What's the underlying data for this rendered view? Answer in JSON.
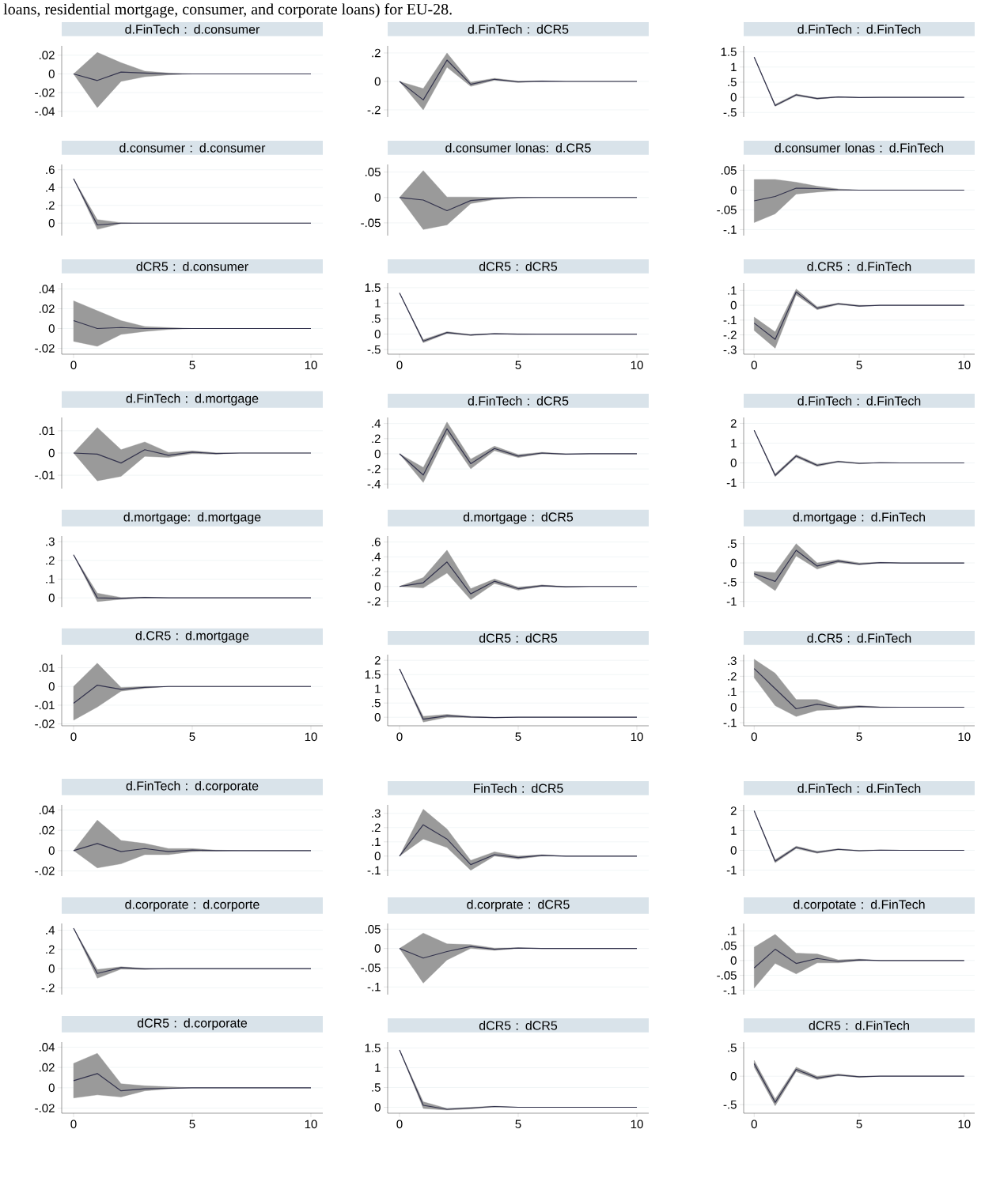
{
  "chart_data": [
    {
      "type": "line",
      "title": "d.FinTech : d.consumer",
      "annotations": [
        "loans, residential mortgage, consumer, and corporate loans) for EU-28."
      ],
      "x": [
        0,
        1,
        2,
        3,
        4,
        5,
        6,
        7,
        8,
        9,
        10
      ],
      "series": [
        {
          "color": "#33334d",
          "values": [
            0,
            -0.007,
            0.002,
            0.001,
            0,
            0,
            0,
            0,
            0,
            0,
            0
          ],
          "lower": [
            0,
            -0.036,
            -0.008,
            -0.003,
            -0.001,
            0,
            0,
            0,
            0,
            0,
            0
          ],
          "upper": [
            0,
            0.023,
            0.012,
            0.003,
            0.001,
            0,
            0,
            0,
            0,
            0,
            0
          ]
        }
      ],
      "xlim": [
        -0.5,
        10.5
      ],
      "xticks": [
        0,
        5,
        10
      ],
      "ylim": [
        -0.046,
        0.03
      ],
      "yticks": [
        {
          "value": 0.02,
          "label": ".02"
        },
        0,
        {
          "value": -0.02,
          "label": "-.02"
        },
        {
          "value": -0.04,
          "label": "-.04"
        }
      ],
      "grid": "y",
      "tick_labels": "y"
    },
    {
      "type": "line",
      "title": "d.consumer : d.consumer",
      "x": [
        0,
        1,
        2,
        3,
        4,
        5,
        6,
        7,
        8,
        9,
        10
      ],
      "series": [
        {
          "color": "#33334d",
          "values": [
            0.5,
            -0.02,
            0,
            0,
            0,
            0,
            0,
            0,
            0,
            0,
            0
          ],
          "lower": [
            0.5,
            -0.07,
            -0.005,
            0,
            0,
            0,
            0,
            0,
            0,
            0,
            0
          ],
          "upper": [
            0.5,
            0.04,
            0.005,
            0,
            0,
            0,
            0,
            0,
            0,
            0,
            0
          ]
        }
      ],
      "xlim": [
        -0.5,
        10.5
      ],
      "xticks": [
        0,
        5,
        10
      ],
      "ylim": [
        -0.14,
        0.66
      ],
      "yticks": [
        {
          "value": 0.6,
          "label": ".6"
        },
        {
          "value": 0.4,
          "label": ".4"
        },
        {
          "value": 0.2,
          "label": ".2"
        },
        0
      ],
      "grid": "y",
      "tick_labels": "y"
    },
    {
      "type": "line",
      "title": "dCR5 : d.consumer",
      "x": [
        0,
        1,
        2,
        3,
        4,
        5,
        6,
        7,
        8,
        9,
        10
      ],
      "series": [
        {
          "color": "#33334d",
          "values": [
            0.008,
            0,
            0.001,
            0,
            0,
            0,
            0,
            0,
            0,
            0,
            0
          ],
          "lower": [
            -0.013,
            -0.018,
            -0.006,
            -0.003,
            -0.001,
            0,
            0,
            0,
            0,
            0,
            0
          ],
          "upper": [
            0.028,
            0.018,
            0.008,
            0.002,
            0.001,
            0,
            0,
            0,
            0,
            0,
            0
          ]
        }
      ],
      "xlim": [
        -0.5,
        10.5
      ],
      "xticks": [
        0,
        5,
        10
      ],
      "ylim": [
        -0.026,
        0.046
      ],
      "yticks": [
        {
          "value": 0.04,
          "label": ".04"
        },
        {
          "value": 0.02,
          "label": ".02"
        },
        0,
        {
          "value": -0.02,
          "label": "-.02"
        }
      ],
      "grid": "y"
    },
    {
      "type": "line",
      "title": "d.FinTech : dCR5",
      "x": [
        0,
        1,
        2,
        3,
        4,
        5,
        6,
        7,
        8,
        9,
        10
      ],
      "series": [
        {
          "color": "#33334d",
          "values": [
            0,
            -0.13,
            0.15,
            -0.02,
            0.015,
            -0.003,
            0.002,
            0,
            0,
            0,
            0
          ],
          "lower": [
            0,
            -0.2,
            0.1,
            -0.035,
            0.008,
            -0.008,
            0,
            0,
            0,
            0,
            0
          ],
          "upper": [
            0,
            -0.05,
            0.2,
            -0.005,
            0.022,
            0.002,
            0.004,
            0,
            0,
            0,
            0
          ]
        }
      ],
      "xlim": [
        -0.5,
        10.5
      ],
      "xticks": [
        0,
        5,
        10
      ],
      "ylim": [
        -0.25,
        0.25
      ],
      "yticks": [
        {
          "value": 0.2,
          "label": ".2"
        },
        0,
        {
          "value": -0.2,
          "label": "-.2"
        }
      ],
      "grid": "y",
      "tick_labels": "y"
    },
    {
      "type": "line",
      "title": "d.consumer lonas: d.CR5",
      "x": [
        0,
        1,
        2,
        3,
        4,
        5,
        6,
        7,
        8,
        9,
        10
      ],
      "series": [
        {
          "color": "#33334d",
          "values": [
            0,
            -0.005,
            -0.026,
            -0.006,
            -0.002,
            0,
            0,
            0,
            0,
            0,
            0
          ],
          "lower": [
            0,
            -0.063,
            -0.054,
            -0.012,
            -0.004,
            -0.001,
            0,
            0,
            0,
            0,
            0
          ],
          "upper": [
            0,
            0.053,
            0.001,
            0.001,
            0,
            0,
            0,
            0,
            0,
            0,
            0
          ]
        }
      ],
      "xlim": [
        -0.5,
        10.5
      ],
      "xticks": [
        0,
        5,
        10
      ],
      "ylim": [
        -0.075,
        0.065
      ],
      "yticks": [
        {
          "value": 0.05,
          "label": ".05"
        },
        0,
        {
          "value": -0.05,
          "label": "-.05"
        }
      ],
      "grid": "y",
      "tick_labels": "y"
    },
    {
      "type": "line",
      "title": "dCR5 : dCR5",
      "x": [
        0,
        1,
        2,
        3,
        4,
        5,
        6,
        7,
        8,
        9,
        10
      ],
      "series": [
        {
          "color": "#33334d",
          "values": [
            1.33,
            -0.23,
            0.05,
            -0.03,
            0.01,
            0,
            0,
            0,
            0,
            0,
            0
          ],
          "lower": [
            1.33,
            -0.28,
            0.02,
            -0.05,
            0,
            -0.01,
            0,
            0,
            0,
            0,
            0
          ],
          "upper": [
            1.33,
            -0.18,
            0.08,
            -0.01,
            0.02,
            0.01,
            0,
            0,
            0,
            0,
            0
          ]
        }
      ],
      "xlim": [
        -0.5,
        10.5
      ],
      "xticks": [
        0,
        5,
        10
      ],
      "ylim": [
        -0.65,
        1.65
      ],
      "yticks": [
        1.5,
        1,
        {
          "value": 0.5,
          "label": ".5"
        },
        0,
        {
          "value": -0.5,
          "label": "-.5"
        }
      ],
      "grid": "y"
    },
    {
      "type": "line",
      "title": "d.FinTech : d.FinTech",
      "x": [
        0,
        1,
        2,
        3,
        4,
        5,
        6,
        7,
        8,
        9,
        10
      ],
      "series": [
        {
          "color": "#33334d",
          "values": [
            1.33,
            -0.27,
            0.08,
            -0.04,
            0.01,
            -0.005,
            0,
            0,
            0,
            0,
            0
          ],
          "lower": [
            1.33,
            -0.3,
            0.05,
            -0.06,
            0,
            -0.01,
            0,
            0,
            0,
            0,
            0
          ],
          "upper": [
            1.33,
            -0.23,
            0.11,
            -0.02,
            0.02,
            0,
            0,
            0,
            0,
            0,
            0
          ]
        }
      ],
      "xlim": [
        -0.5,
        10.5
      ],
      "xticks": [
        0,
        5,
        10
      ],
      "ylim": [
        -0.65,
        1.7
      ],
      "yticks": [
        1.5,
        1,
        {
          "value": 0.5,
          "label": ".5"
        },
        0,
        {
          "value": -0.5,
          "label": "-.5"
        }
      ],
      "grid": "y",
      "tick_labels": "y"
    },
    {
      "type": "line",
      "title": "d.consumer lonas : d.FinTech",
      "x": [
        0,
        1,
        2,
        3,
        4,
        5,
        6,
        7,
        8,
        9,
        10
      ],
      "series": [
        {
          "color": "#33334d",
          "values": [
            -0.027,
            -0.016,
            0.005,
            0.004,
            0.001,
            0,
            0,
            0,
            0,
            0,
            0
          ],
          "lower": [
            -0.082,
            -0.06,
            -0.01,
            -0.005,
            -0.001,
            0,
            0,
            0,
            0,
            0,
            0
          ],
          "upper": [
            0.027,
            0.027,
            0.02,
            0.01,
            0.003,
            0,
            0,
            0,
            0,
            0,
            0
          ]
        }
      ],
      "xlim": [
        -0.5,
        10.5
      ],
      "xticks": [
        0,
        5,
        10
      ],
      "ylim": [
        -0.115,
        0.065
      ],
      "yticks": [
        {
          "value": 0.05,
          "label": ".05"
        },
        0,
        {
          "value": -0.05,
          "label": "-.05"
        },
        {
          "value": -0.1,
          "label": "-.1"
        }
      ],
      "grid": "y",
      "tick_labels": "y"
    },
    {
      "type": "line",
      "title": "d.CR5 : d.FinTech",
      "x": [
        0,
        1,
        2,
        3,
        4,
        5,
        6,
        7,
        8,
        9,
        10
      ],
      "series": [
        {
          "color": "#33334d",
          "values": [
            -0.12,
            -0.23,
            0.09,
            -0.02,
            0.01,
            -0.005,
            0,
            0,
            0,
            0,
            0
          ],
          "lower": [
            -0.17,
            -0.29,
            0.07,
            -0.03,
            0.005,
            -0.008,
            0,
            0,
            0,
            0,
            0
          ],
          "upper": [
            -0.08,
            -0.18,
            0.11,
            -0.01,
            0.015,
            0,
            0,
            0,
            0,
            0,
            0
          ]
        }
      ],
      "xlim": [
        -0.5,
        10.5
      ],
      "xticks": [
        0,
        5,
        10
      ],
      "ylim": [
        -0.33,
        0.15
      ],
      "yticks": [
        {
          "value": 0.1,
          "label": ".1"
        },
        0,
        {
          "value": -0.1,
          "label": "-.1"
        },
        {
          "value": -0.2,
          "label": "-.2"
        },
        {
          "value": -0.3,
          "label": "-.3"
        }
      ],
      "grid": "y"
    },
    {
      "type": "line",
      "title": "d.FinTech : d.mortgage",
      "x": [
        0,
        1,
        2,
        3,
        4,
        5,
        6,
        7,
        8,
        9,
        10
      ],
      "series": [
        {
          "color": "#33334d",
          "values": [
            0,
            -0.0005,
            -0.0045,
            0.0015,
            -0.001,
            0.0004,
            -0.0002,
            0,
            0,
            0,
            0
          ],
          "lower": [
            0,
            -0.0125,
            -0.0105,
            -0.0015,
            -0.002,
            -0.0003,
            -0.0005,
            0,
            0,
            0,
            0
          ],
          "upper": [
            0,
            0.0115,
            0.0015,
            0.005,
            0.0003,
            0.001,
            0.0001,
            0,
            0,
            0,
            0
          ]
        }
      ],
      "xlim": [
        -0.5,
        10.5
      ],
      "xticks": [
        0,
        5,
        10
      ],
      "ylim": [
        -0.016,
        0.016
      ],
      "yticks": [
        {
          "value": 0.01,
          "label": ".01"
        },
        0,
        {
          "value": -0.01,
          "label": "-.01"
        }
      ],
      "grid": "y",
      "tick_labels": "y"
    },
    {
      "type": "line",
      "title": "d.mortgage: d.mortgage",
      "x": [
        0,
        1,
        2,
        3,
        4,
        5,
        6,
        7,
        8,
        9,
        10
      ],
      "series": [
        {
          "color": "#33334d",
          "values": [
            0.23,
            0,
            -0.003,
            0.002,
            0,
            0,
            0,
            0,
            0,
            0,
            0
          ],
          "lower": [
            0.23,
            -0.02,
            -0.008,
            0,
            0,
            0,
            0,
            0,
            0,
            0,
            0
          ],
          "upper": [
            0.23,
            0.025,
            0.002,
            0.004,
            0,
            0,
            0,
            0,
            0,
            0,
            0
          ]
        }
      ],
      "xlim": [
        -0.5,
        10.5
      ],
      "xticks": [
        0,
        5,
        10
      ],
      "ylim": [
        -0.05,
        0.33
      ],
      "yticks": [
        {
          "value": 0.3,
          "label": ".3"
        },
        {
          "value": 0.2,
          "label": ".2"
        },
        {
          "value": 0.1,
          "label": ".1"
        },
        0
      ],
      "grid": "y",
      "tick_labels": "y"
    },
    {
      "type": "line",
      "title": "d.CR5 : d.mortgage",
      "x": [
        0,
        1,
        2,
        3,
        4,
        5,
        6,
        7,
        8,
        9,
        10
      ],
      "series": [
        {
          "color": "#33334d",
          "values": [
            -0.009,
            0.0007,
            -0.0015,
            -0.0005,
            0,
            0,
            0,
            0,
            0,
            0,
            0
          ],
          "lower": [
            -0.018,
            -0.011,
            -0.0025,
            -0.001,
            0,
            0,
            0,
            0,
            0,
            0,
            0
          ],
          "upper": [
            0,
            0.0125,
            -0.0005,
            0,
            0,
            0,
            0,
            0,
            0,
            0,
            0
          ]
        }
      ],
      "xlim": [
        -0.5,
        10.5
      ],
      "xticks": [
        0,
        5,
        10
      ],
      "ylim": [
        -0.021,
        0.017
      ],
      "yticks": [
        {
          "value": 0.01,
          "label": ".01"
        },
        0,
        {
          "value": -0.01,
          "label": "-.01"
        },
        {
          "value": -0.02,
          "label": "-.02"
        }
      ],
      "grid": "y"
    },
    {
      "type": "line",
      "title": "d.FinTech : dCR5",
      "x": [
        0,
        1,
        2,
        3,
        4,
        5,
        6,
        7,
        8,
        9,
        10
      ],
      "series": [
        {
          "color": "#33334d",
          "values": [
            0,
            -0.28,
            0.33,
            -0.13,
            0.07,
            -0.03,
            0.01,
            -0.005,
            0,
            0,
            0
          ],
          "lower": [
            0,
            -0.38,
            0.26,
            -0.2,
            0.04,
            -0.05,
            0,
            -0.01,
            0,
            0,
            0
          ],
          "upper": [
            0,
            -0.18,
            0.42,
            -0.07,
            0.1,
            -0.01,
            0.02,
            0,
            0,
            0,
            0
          ]
        }
      ],
      "xlim": [
        -0.5,
        10.5
      ],
      "xticks": [
        0,
        5,
        10
      ],
      "ylim": [
        -0.46,
        0.48
      ],
      "yticks": [
        {
          "value": 0.4,
          "label": ".4"
        },
        {
          "value": 0.2,
          "label": ".2"
        },
        0,
        {
          "value": -0.2,
          "label": "-.2"
        },
        {
          "value": -0.4,
          "label": "-.4"
        }
      ],
      "grid": "y",
      "tick_labels": "y"
    },
    {
      "type": "line",
      "title": "d.mortgage : dCR5",
      "x": [
        0,
        1,
        2,
        3,
        4,
        5,
        6,
        7,
        8,
        9,
        10
      ],
      "series": [
        {
          "color": "#33334d",
          "values": [
            0,
            0.05,
            0.33,
            -0.1,
            0.07,
            -0.03,
            0.01,
            -0.005,
            0,
            0,
            0
          ],
          "lower": [
            0,
            -0.02,
            0.18,
            -0.18,
            0.04,
            -0.05,
            0,
            -0.01,
            0,
            0,
            0
          ],
          "upper": [
            0,
            0.12,
            0.49,
            -0.03,
            0.1,
            -0.01,
            0.02,
            0,
            0,
            0,
            0
          ]
        }
      ],
      "xlim": [
        -0.5,
        10.5
      ],
      "xticks": [
        0,
        5,
        10
      ],
      "ylim": [
        -0.28,
        0.68
      ],
      "yticks": [
        {
          "value": 0.6,
          "label": ".6"
        },
        {
          "value": 0.4,
          "label": ".4"
        },
        {
          "value": 0.2,
          "label": ".2"
        },
        0,
        {
          "value": -0.2,
          "label": "-.2"
        }
      ],
      "grid": "y",
      "tick_labels": "y"
    },
    {
      "type": "line",
      "title": "dCR5 : dCR5",
      "x": [
        0,
        1,
        2,
        3,
        4,
        5,
        6,
        7,
        8,
        9,
        10
      ],
      "series": [
        {
          "color": "#33334d",
          "values": [
            1.7,
            -0.07,
            0.05,
            0.01,
            -0.01,
            0,
            0,
            0,
            0,
            0,
            0
          ],
          "lower": [
            1.7,
            -0.17,
            0,
            -0.01,
            -0.02,
            0,
            0,
            0,
            0,
            0,
            0
          ],
          "upper": [
            1.7,
            0.03,
            0.1,
            0.03,
            0,
            0,
            0,
            0,
            0,
            0,
            0
          ]
        }
      ],
      "xlim": [
        -0.5,
        10.5
      ],
      "xticks": [
        0,
        5,
        10
      ],
      "ylim": [
        -0.3,
        2.2
      ],
      "yticks": [
        2,
        1.5,
        1,
        {
          "value": 0.5,
          "label": ".5"
        },
        0
      ],
      "grid": "y"
    },
    {
      "type": "line",
      "title": "d.FinTech : d.FinTech",
      "x": [
        0,
        1,
        2,
        3,
        4,
        5,
        6,
        7,
        8,
        9,
        10
      ],
      "series": [
        {
          "color": "#33334d",
          "values": [
            1.65,
            -0.63,
            0.35,
            -0.12,
            0.07,
            -0.02,
            0.01,
            0,
            0,
            0,
            0
          ],
          "lower": [
            1.65,
            -0.7,
            0.28,
            -0.18,
            0.04,
            -0.05,
            0,
            0,
            0,
            0,
            0
          ],
          "upper": [
            1.65,
            -0.55,
            0.42,
            -0.06,
            0.1,
            0,
            0.02,
            0,
            0,
            0,
            0
          ]
        }
      ],
      "xlim": [
        -0.5,
        10.5
      ],
      "xticks": [
        0,
        5,
        10
      ],
      "ylim": [
        -1.3,
        2.3
      ],
      "yticks": [
        2,
        1,
        0,
        -1
      ],
      "grid": "y",
      "tick_labels": "y"
    },
    {
      "type": "line",
      "title": "d.mortgage : d.FinTech",
      "x": [
        0,
        1,
        2,
        3,
        4,
        5,
        6,
        7,
        8,
        9,
        10
      ],
      "series": [
        {
          "color": "#33334d",
          "values": [
            -0.28,
            -0.48,
            0.33,
            -0.08,
            0.05,
            -0.03,
            0.01,
            0,
            0,
            0,
            0
          ],
          "lower": [
            -0.35,
            -0.72,
            0.18,
            -0.16,
            0.01,
            -0.05,
            0,
            0,
            0,
            0,
            0
          ],
          "upper": [
            -0.22,
            -0.25,
            0.5,
            0,
            0.09,
            0,
            0.02,
            0,
            0,
            0,
            0
          ]
        }
      ],
      "xlim": [
        -0.5,
        10.5
      ],
      "xticks": [
        0,
        5,
        10
      ],
      "ylim": [
        -1.15,
        0.7
      ],
      "yticks": [
        {
          "value": 0.5,
          "label": ".5"
        },
        0,
        {
          "value": -0.5,
          "label": "-.5"
        },
        -1
      ],
      "grid": "y",
      "tick_labels": "y"
    },
    {
      "type": "line",
      "title": "d.CR5 : d.FinTech",
      "x": [
        0,
        1,
        2,
        3,
        4,
        5,
        6,
        7,
        8,
        9,
        10
      ],
      "series": [
        {
          "color": "#33334d",
          "values": [
            0.25,
            0.12,
            -0.01,
            0.02,
            -0.005,
            0.005,
            0,
            0,
            0,
            0,
            0
          ],
          "lower": [
            0.19,
            0.01,
            -0.06,
            -0.02,
            -0.015,
            0,
            -0.003,
            0,
            0,
            0,
            0
          ],
          "upper": [
            0.31,
            0.22,
            0.05,
            0.05,
            0.005,
            0.01,
            0.003,
            0,
            0,
            0,
            0
          ]
        }
      ],
      "xlim": [
        -0.5,
        10.5
      ],
      "xticks": [
        0,
        5,
        10
      ],
      "ylim": [
        -0.12,
        0.34
      ],
      "yticks": [
        {
          "value": 0.3,
          "label": ".3"
        },
        {
          "value": 0.2,
          "label": ".2"
        },
        {
          "value": 0.1,
          "label": ".1"
        },
        0,
        {
          "value": -0.1,
          "label": "-.1"
        }
      ],
      "grid": "y"
    },
    {
      "type": "line",
      "title": "d.FinTech : d.corporate",
      "x": [
        0,
        1,
        2,
        3,
        4,
        5,
        6,
        7,
        8,
        9,
        10
      ],
      "series": [
        {
          "color": "#33334d",
          "values": [
            0,
            0.007,
            -0.001,
            0.002,
            -0.001,
            0.0005,
            0,
            0,
            0,
            0,
            0
          ],
          "lower": [
            0,
            -0.017,
            -0.013,
            -0.004,
            -0.004,
            -0.001,
            -0.0005,
            0,
            0,
            0,
            0
          ],
          "upper": [
            0,
            0.03,
            0.01,
            0.007,
            0.002,
            0.002,
            0.0005,
            0,
            0,
            0,
            0
          ]
        }
      ],
      "xlim": [
        -0.5,
        10.5
      ],
      "xticks": [
        0,
        5,
        10
      ],
      "ylim": [
        -0.025,
        0.045
      ],
      "yticks": [
        {
          "value": 0.04,
          "label": ".04"
        },
        {
          "value": 0.02,
          "label": ".02"
        },
        0,
        {
          "value": -0.02,
          "label": "-.02"
        }
      ],
      "grid": "y",
      "tick_labels": "y"
    },
    {
      "type": "line",
      "title": "d.corporate : d.corporte",
      "x": [
        0,
        1,
        2,
        3,
        4,
        5,
        6,
        7,
        8,
        9,
        10
      ],
      "series": [
        {
          "color": "#33334d",
          "values": [
            0.42,
            -0.05,
            0.01,
            -0.002,
            0,
            0,
            0,
            0,
            0,
            0,
            0
          ],
          "lower": [
            0.42,
            -0.1,
            -0.005,
            -0.01,
            0,
            0,
            0,
            0,
            0,
            0,
            0
          ],
          "upper": [
            0.42,
            -0.01,
            0.02,
            0.003,
            0,
            0,
            0,
            0,
            0,
            0,
            0
          ]
        }
      ],
      "xlim": [
        -0.5,
        10.5
      ],
      "xticks": [
        0,
        5,
        10
      ],
      "ylim": [
        -0.27,
        0.47
      ],
      "yticks": [
        {
          "value": 0.4,
          "label": ".4"
        },
        {
          "value": 0.2,
          "label": ".2"
        },
        0,
        {
          "value": -0.2,
          "label": "-.2"
        }
      ],
      "grid": "y",
      "tick_labels": "y"
    },
    {
      "type": "line",
      "title": "dCR5 : d.corporate",
      "x": [
        0,
        1,
        2,
        3,
        4,
        5,
        6,
        7,
        8,
        9,
        10
      ],
      "series": [
        {
          "color": "#33334d",
          "values": [
            0.007,
            0.014,
            -0.003,
            -0.001,
            -0.0005,
            0,
            0,
            0,
            0,
            0,
            0
          ],
          "lower": [
            -0.01,
            -0.007,
            -0.009,
            -0.003,
            -0.001,
            0,
            0,
            0,
            0,
            0,
            0
          ],
          "upper": [
            0.024,
            0.034,
            0.004,
            0.002,
            0.001,
            0,
            0,
            0,
            0,
            0,
            0
          ]
        }
      ],
      "xlim": [
        -0.5,
        10.5
      ],
      "xticks": [
        0,
        5,
        10
      ],
      "ylim": [
        -0.025,
        0.045
      ],
      "yticks": [
        {
          "value": 0.04,
          "label": ".04"
        },
        {
          "value": 0.02,
          "label": ".02"
        },
        0,
        {
          "value": -0.02,
          "label": "-.02"
        }
      ],
      "grid": "y"
    },
    {
      "type": "line",
      "title": "FinTech : dCR5",
      "x": [
        0,
        1,
        2,
        3,
        4,
        5,
        6,
        7,
        8,
        9,
        10
      ],
      "series": [
        {
          "color": "#33334d",
          "values": [
            0,
            0.22,
            0.12,
            -0.06,
            0.01,
            -0.01,
            0.005,
            0,
            0,
            0,
            0
          ],
          "lower": [
            0,
            0.12,
            0.06,
            -0.1,
            0,
            -0.02,
            0,
            0,
            0,
            0,
            0
          ],
          "upper": [
            0,
            0.33,
            0.19,
            -0.03,
            0.03,
            0,
            0.01,
            0,
            0,
            0,
            0
          ]
        }
      ],
      "xlim": [
        -0.5,
        10.5
      ],
      "xticks": [
        0,
        5,
        10
      ],
      "ylim": [
        -0.14,
        0.36
      ],
      "yticks": [
        {
          "value": 0.3,
          "label": ".3"
        },
        {
          "value": 0.2,
          "label": ".2"
        },
        {
          "value": 0.1,
          "label": ".1"
        },
        0,
        {
          "value": -0.1,
          "label": "-.1"
        }
      ],
      "grid": "y",
      "tick_labels": "y"
    },
    {
      "type": "line",
      "title": "d.corprate : dCR5",
      "x": [
        0,
        1,
        2,
        3,
        4,
        5,
        6,
        7,
        8,
        9,
        10
      ],
      "series": [
        {
          "color": "#33334d",
          "values": [
            0,
            -0.025,
            -0.008,
            0.005,
            -0.002,
            0.001,
            0,
            0,
            0,
            0,
            0
          ],
          "lower": [
            0,
            -0.09,
            -0.03,
            0,
            -0.005,
            0,
            0,
            0,
            0,
            0,
            0
          ],
          "upper": [
            0,
            0.04,
            0.012,
            0.01,
            0.001,
            0.002,
            0,
            0,
            0,
            0,
            0
          ]
        }
      ],
      "xlim": [
        -0.5,
        10.5
      ],
      "xticks": [
        0,
        5,
        10
      ],
      "ylim": [
        -0.12,
        0.065
      ],
      "yticks": [
        {
          "value": 0.05,
          "label": ".05"
        },
        0,
        {
          "value": -0.05,
          "label": "-.05"
        },
        {
          "value": -0.1,
          "label": "-.1"
        }
      ],
      "grid": "y",
      "tick_labels": "y"
    },
    {
      "type": "line",
      "title": "dCR5 : dCR5",
      "x": [
        0,
        1,
        2,
        3,
        4,
        5,
        6,
        7,
        8,
        9,
        10
      ],
      "series": [
        {
          "color": "#33334d",
          "values": [
            1.45,
            0.05,
            -0.05,
            -0.02,
            0.02,
            0,
            0,
            0,
            0,
            0,
            0
          ],
          "lower": [
            1.45,
            -0.03,
            -0.07,
            -0.04,
            0.01,
            0,
            0,
            0,
            0,
            0,
            0
          ],
          "upper": [
            1.45,
            0.14,
            -0.03,
            0,
            0.03,
            0,
            0,
            0,
            0,
            0,
            0
          ]
        }
      ],
      "xlim": [
        -0.5,
        10.5
      ],
      "xticks": [
        0,
        5,
        10
      ],
      "ylim": [
        -0.15,
        1.65
      ],
      "yticks": [
        1.5,
        1,
        {
          "value": 0.5,
          "label": ".5"
        },
        0
      ],
      "grid": "y"
    },
    {
      "type": "line",
      "title": "d.FinTech : d.FinTech",
      "x": [
        0,
        1,
        2,
        3,
        4,
        5,
        6,
        7,
        8,
        9,
        10
      ],
      "series": [
        {
          "color": "#33334d",
          "values": [
            2,
            -0.55,
            0.15,
            -0.1,
            0.05,
            -0.02,
            0.01,
            0,
            0,
            0,
            0
          ],
          "lower": [
            2,
            -0.63,
            0.09,
            -0.15,
            0.02,
            -0.04,
            0,
            0,
            0,
            0,
            0
          ],
          "upper": [
            2,
            -0.47,
            0.21,
            -0.05,
            0.08,
            0,
            0.02,
            0,
            0,
            0,
            0
          ]
        }
      ],
      "xlim": [
        -0.5,
        10.5
      ],
      "xticks": [
        0,
        5,
        10
      ],
      "ylim": [
        -1.3,
        2.3
      ],
      "yticks": [
        2,
        1,
        0,
        -1
      ],
      "grid": "y",
      "tick_labels": "y"
    },
    {
      "type": "line",
      "title": "d.corpotate : d.FinTech",
      "x": [
        0,
        1,
        2,
        3,
        4,
        5,
        6,
        7,
        8,
        9,
        10
      ],
      "series": [
        {
          "color": "#33334d",
          "values": [
            -0.025,
            0.038,
            -0.01,
            0.007,
            -0.003,
            0.002,
            0,
            0,
            0,
            0,
            0
          ],
          "lower": [
            -0.093,
            -0.01,
            -0.045,
            -0.008,
            -0.008,
            -0.001,
            0,
            0,
            0,
            0,
            0
          ],
          "upper": [
            0.045,
            0.088,
            0.025,
            0.022,
            0.002,
            0.005,
            0,
            0,
            0,
            0,
            0
          ]
        }
      ],
      "xlim": [
        -0.5,
        10.5
      ],
      "xticks": [
        0,
        5,
        10
      ],
      "ylim": [
        -0.115,
        0.125
      ],
      "yticks": [
        {
          "value": 0.1,
          "label": ".1"
        },
        {
          "value": 0.05,
          "label": ".05"
        },
        0,
        {
          "value": -0.05,
          "label": "-.05"
        },
        {
          "value": -0.1,
          "label": "-.1"
        }
      ],
      "grid": "y",
      "tick_labels": "y"
    },
    {
      "type": "line",
      "title": "dCR5 : d.FinTech",
      "x": [
        0,
        1,
        2,
        3,
        4,
        5,
        6,
        7,
        8,
        9,
        10
      ],
      "series": [
        {
          "color": "#33334d",
          "values": [
            0.22,
            -0.46,
            0.12,
            -0.03,
            0.02,
            -0.01,
            0,
            0,
            0,
            0,
            0
          ],
          "lower": [
            0.16,
            -0.52,
            0.08,
            -0.06,
            0.01,
            -0.02,
            0,
            0,
            0,
            0,
            0
          ],
          "upper": [
            0.28,
            -0.4,
            0.16,
            0,
            0.04,
            0,
            0,
            0,
            0,
            0,
            0
          ]
        }
      ],
      "xlim": [
        -0.5,
        10.5
      ],
      "xticks": [
        0,
        5,
        10
      ],
      "ylim": [
        -0.65,
        0.6
      ],
      "yticks": [
        {
          "value": 0.5,
          "label": ".5"
        },
        0,
        {
          "value": -0.5,
          "label": "-.5"
        }
      ],
      "grid": "y"
    }
  ]
}
